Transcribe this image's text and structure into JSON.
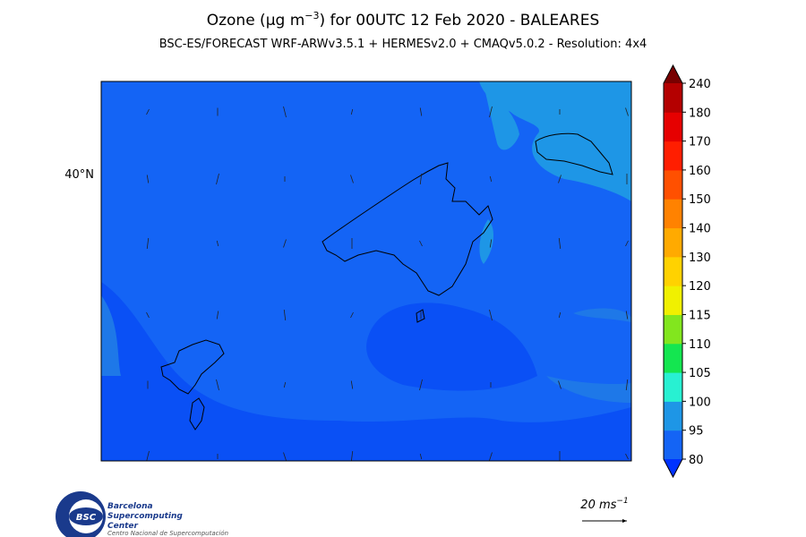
{
  "title": {
    "prefix": "Ozone (μg m",
    "exponent": "−3",
    "suffix": ") for 00UTC 12 Feb 2020 - BALEARES"
  },
  "subtitle": "BSC-ES/FORECAST  WRF-ARWv3.5.1 + HERMESv2.0 + CMAQv5.0.2 - Resolution: 4x4",
  "map": {
    "lat_label": "40°N"
  },
  "colorbar": {
    "ticks": [
      "80",
      "95",
      "100",
      "105",
      "110",
      "115",
      "120",
      "130",
      "140",
      "150",
      "160",
      "170",
      "180",
      "240"
    ],
    "colors": [
      "#1464f5",
      "#1e96e6",
      "#28f0d2",
      "#14e650",
      "#82e61e",
      "#f0f000",
      "#ffd200",
      "#ffaa00",
      "#ff8200",
      "#ff5000",
      "#ff1e00",
      "#e60000",
      "#b40000"
    ],
    "under_color": "#0032ff",
    "over_color": "#780000"
  },
  "wind_key": {
    "label": "20 ms",
    "exponent": "−1"
  },
  "logo": {
    "mark": "BSC",
    "line1": "Barcelona",
    "line2": "Supercomputing",
    "line3": "Center",
    "tagline": "Centro Nacional de Supercomputación"
  }
}
